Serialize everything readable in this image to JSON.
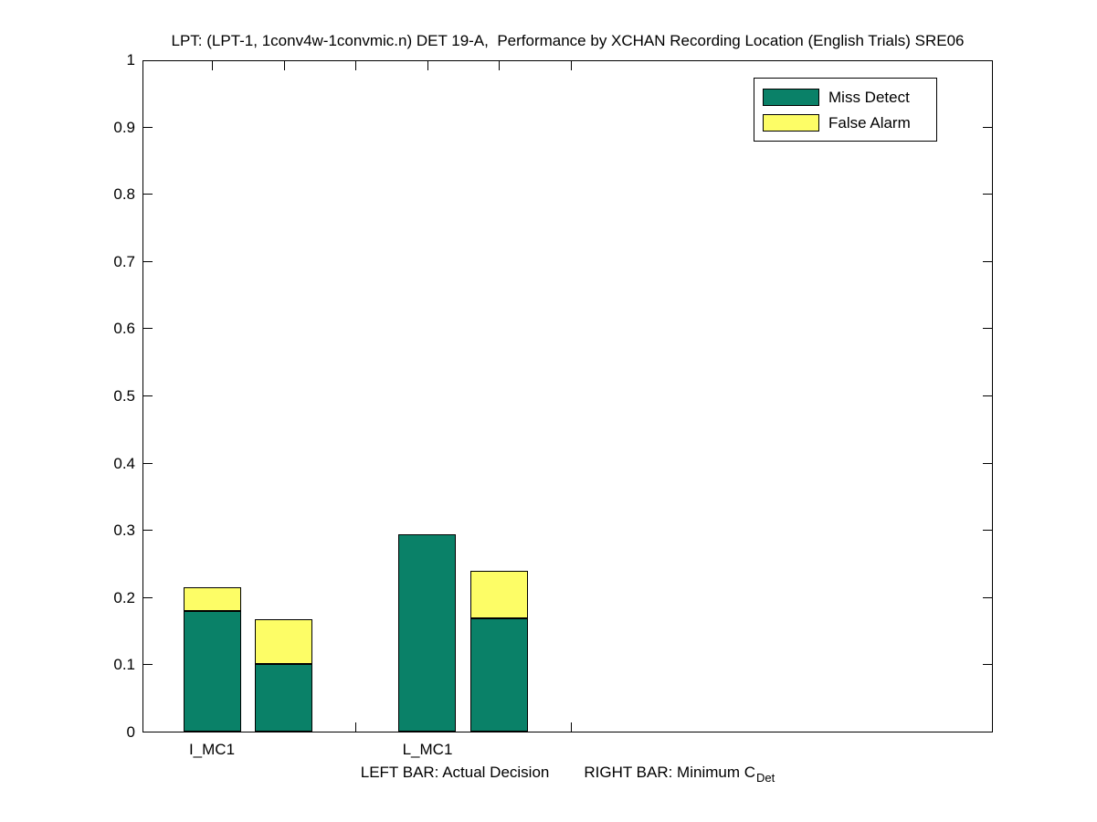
{
  "caption": {
    "left": "LEFT BAR: Actual Decision",
    "right": "RIGHT BAR: Minimum C",
    "right_subscript": "Det"
  },
  "chart_data": {
    "type": "bar",
    "stacked": true,
    "grouped": true,
    "title": "LPT: (LPT-1, 1conv4w-1convmic.n) DET 19-A,  Performance by XCHAN Recording Location (English Trials) SRE06",
    "categories": [
      "I_MC1",
      "L_MC1"
    ],
    "bar_kinds": [
      "Actual Decision",
      "Minimum C_Det"
    ],
    "ylim": [
      0,
      1
    ],
    "ytick_labels": [
      "0",
      "0.1",
      "0.2",
      "0.3",
      "0.4",
      "0.5",
      "0.6",
      "0.7",
      "0.8",
      "0.9",
      "1"
    ],
    "x_ticks_count": 6,
    "grid": false,
    "legend": {
      "position": "top-right",
      "entries": [
        {
          "label": "Miss Detect",
          "color": "#0A8168"
        },
        {
          "label": "False Alarm",
          "color": "#FDFD66"
        }
      ]
    },
    "edge_color": "#000000",
    "groups": [
      {
        "category": "I_MC1",
        "bars": [
          {
            "kind": "Actual Decision",
            "miss_detect": 0.18,
            "false_alarm": 0.036
          },
          {
            "kind": "Minimum C_Det",
            "miss_detect": 0.1,
            "false_alarm": 0.067
          }
        ]
      },
      {
        "category": "L_MC1",
        "bars": [
          {
            "kind": "Actual Decision",
            "miss_detect": 0.293,
            "false_alarm": 0.0
          },
          {
            "kind": "Minimum C_Det",
            "miss_detect": 0.168,
            "false_alarm": 0.071
          }
        ]
      }
    ]
  }
}
